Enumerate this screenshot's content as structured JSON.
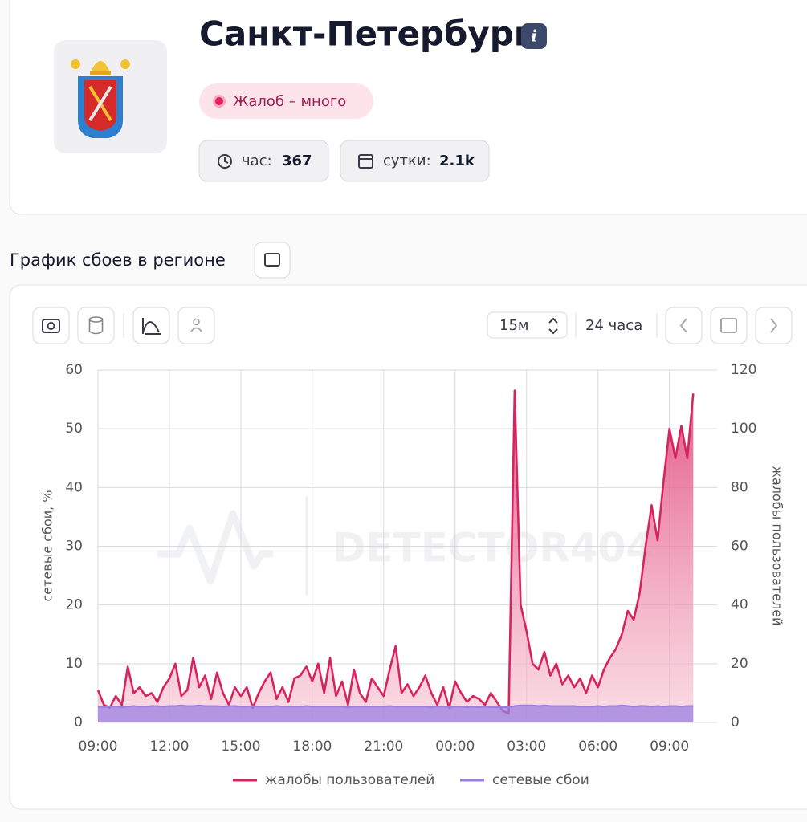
{
  "header": {
    "title": "Санкт-Петербург",
    "badge": "Жалоб – много",
    "stats": [
      {
        "label": "час:",
        "value": "367"
      },
      {
        "label": "сутки:",
        "value": "2.1k"
      }
    ]
  },
  "section_title": "График сбоев в регионе",
  "toolbar": {
    "interval": "15м",
    "range": "24 часа"
  },
  "watermark": "DETECTOR404",
  "chart_data": {
    "type": "line",
    "grid": true,
    "legend": "bottom",
    "ylabel": "сетевые сбои, %",
    "y2label": "жалобы пользователей",
    "ylim": [
      0,
      60
    ],
    "yticks": [
      0,
      10,
      20,
      30,
      40,
      50,
      60
    ],
    "y2lim": [
      0,
      120
    ],
    "y2ticks": [
      0,
      20,
      40,
      60,
      80,
      100,
      120
    ],
    "xlim": [
      0,
      26
    ],
    "xticks": [
      {
        "value": 0,
        "label": "09:00"
      },
      {
        "value": 3,
        "label": "12:00"
      },
      {
        "value": 6,
        "label": "15:00"
      },
      {
        "value": 9,
        "label": "18:00"
      },
      {
        "value": 12,
        "label": "21:00"
      },
      {
        "value": 15,
        "label": "00:00"
      },
      {
        "value": 18,
        "label": "03:00"
      },
      {
        "value": 21,
        "label": "06:00"
      },
      {
        "value": 24,
        "label": "09:00"
      }
    ],
    "x": [
      0,
      0.25,
      0.5,
      0.75,
      1,
      1.25,
      1.5,
      1.75,
      2,
      2.25,
      2.5,
      2.75,
      3,
      3.25,
      3.5,
      3.75,
      4,
      4.25,
      4.5,
      4.75,
      5,
      5.25,
      5.5,
      5.75,
      6,
      6.25,
      6.5,
      6.75,
      7,
      7.25,
      7.5,
      7.75,
      8,
      8.25,
      8.5,
      8.75,
      9,
      9.25,
      9.5,
      9.75,
      10,
      10.25,
      10.5,
      10.75,
      11,
      11.25,
      11.5,
      11.75,
      12,
      12.25,
      12.5,
      12.75,
      13,
      13.25,
      13.5,
      13.75,
      14,
      14.25,
      14.5,
      14.75,
      15,
      15.25,
      15.5,
      15.75,
      16,
      16.25,
      16.5,
      16.75,
      17,
      17.25,
      17.5,
      17.75,
      18,
      18.25,
      18.5,
      18.75,
      19,
      19.25,
      19.5,
      19.75,
      20,
      20.25,
      20.5,
      20.75,
      21,
      21.25,
      21.5,
      21.75,
      22,
      22.25,
      22.5,
      22.75,
      23,
      23.25,
      23.5,
      23.75,
      24,
      24.25,
      24.5,
      24.75,
      25
    ],
    "series": [
      {
        "name": "жалобы пользователей",
        "color": "#d6245f",
        "axis": "y2",
        "values": [
          11,
          6,
          5,
          9,
          6,
          19,
          10,
          12,
          9,
          10,
          7,
          12,
          15,
          20,
          9,
          11,
          22,
          12,
          16,
          8,
          17,
          10,
          6,
          12,
          9,
          12,
          5,
          10,
          14,
          17,
          8,
          12,
          7,
          15,
          16,
          19,
          14,
          20,
          10,
          22,
          9,
          14,
          6,
          18,
          10,
          7,
          15,
          12,
          9,
          18,
          26,
          10,
          13,
          9,
          12,
          16,
          10,
          6,
          12,
          5,
          14,
          10,
          7,
          9,
          8,
          6,
          10,
          7,
          4,
          3,
          113,
          40,
          31,
          20,
          18,
          24,
          16,
          20,
          13,
          16,
          12,
          15,
          10,
          16,
          12,
          18,
          22,
          25,
          30,
          38,
          35,
          44,
          60,
          74,
          62,
          82,
          100,
          90,
          101,
          90,
          112
        ]
      },
      {
        "name": "сетевые сбои",
        "color": "#9b7fe0",
        "values": [
          2.7,
          2.6,
          2.7,
          2.7,
          2.6,
          2.7,
          2.8,
          2.7,
          2.7,
          2.8,
          2.8,
          2.7,
          2.8,
          2.8,
          2.9,
          2.8,
          2.8,
          2.9,
          2.8,
          2.8,
          2.8,
          2.7,
          2.8,
          2.8,
          2.7,
          2.7,
          2.8,
          2.7,
          2.7,
          2.7,
          2.8,
          2.7,
          2.7,
          2.7,
          2.7,
          2.8,
          2.7,
          2.7,
          2.7,
          2.7,
          2.7,
          2.7,
          2.6,
          2.7,
          2.7,
          2.7,
          2.7,
          2.7,
          2.7,
          2.8,
          2.7,
          2.7,
          2.7,
          2.7,
          2.7,
          2.7,
          2.6,
          2.7,
          2.7,
          2.6,
          2.7,
          2.7,
          2.6,
          2.7,
          2.6,
          2.7,
          2.6,
          2.6,
          2.6,
          2.6,
          2.8,
          2.9,
          2.9,
          2.9,
          2.8,
          2.9,
          2.8,
          2.8,
          2.8,
          2.8,
          2.8,
          2.7,
          2.7,
          2.7,
          2.8,
          2.7,
          2.8,
          2.8,
          2.9,
          2.8,
          2.7,
          2.8,
          2.8,
          2.7,
          2.8,
          2.7,
          2.8,
          2.8,
          2.7,
          2.8,
          2.8
        ]
      }
    ]
  }
}
